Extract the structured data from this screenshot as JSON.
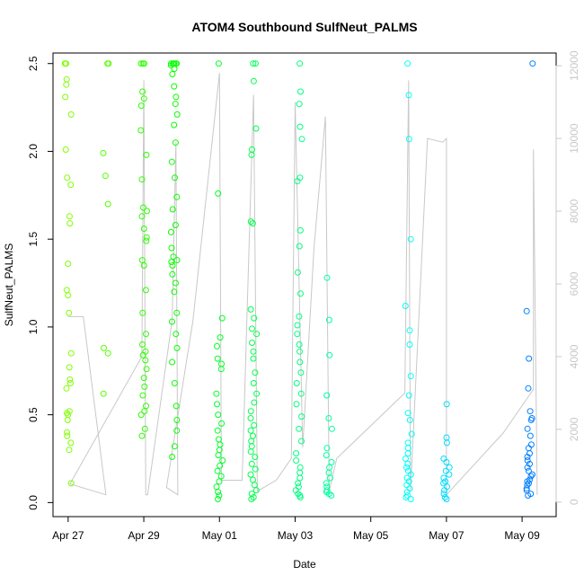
{
  "chart_data": {
    "type": "scatter",
    "title": "ATOM4 Southbound SulfNeut_PALMS",
    "xlabel": "Date",
    "ylabel": "SulfNeut_PALMS",
    "xlim": [
      26.6,
      39.9
    ],
    "ylim": [
      -0.08,
      2.56
    ],
    "y2lim": [
      -400,
      12350
    ],
    "x_ticks": [
      {
        "value": 27,
        "label": "Apr 27"
      },
      {
        "value": 29,
        "label": "Apr 29"
      },
      {
        "value": 31,
        "label": "May 01"
      },
      {
        "value": 33,
        "label": "May 03"
      },
      {
        "value": 35,
        "label": "May 05"
      },
      {
        "value": 37,
        "label": "May 07"
      },
      {
        "value": 39,
        "label": "May 09"
      }
    ],
    "y_ticks": [
      "0.0",
      "0.5",
      "1.0",
      "1.5",
      "2.0",
      "2.5"
    ],
    "y2_ticks": [
      "0",
      "2000",
      "4000",
      "6000",
      "8000",
      "10000",
      "12000"
    ],
    "grid": false,
    "series": [
      {
        "name": "SulfNeut_PALMS",
        "color_scale": [
          "#7fff00",
          "#00ff00",
          "#00ff80",
          "#00ffff",
          "#0080ff"
        ],
        "clusters": [
          {
            "x": 27.0,
            "y": [
              2.5,
              2.5,
              2.5,
              2.41,
              2.38,
              2.31,
              2.21,
              2.01,
              1.85,
              1.81,
              1.63,
              1.59,
              1.36,
              1.21,
              1.18,
              1.08,
              0.85,
              0.77,
              0.7,
              0.68,
              0.65,
              0.52,
              0.51,
              0.5,
              0.47,
              0.4,
              0.38,
              0.34,
              0.3,
              0.11
            ]
          },
          {
            "x": 28.0,
            "y": [
              2.5,
              2.5,
              1.99,
              1.86,
              1.7,
              0.88,
              0.85,
              0.62
            ]
          },
          {
            "x": 29.0,
            "y": [
              2.5,
              2.5,
              2.5,
              2.34,
              2.3,
              2.26,
              2.12,
              1.98,
              1.84,
              1.68,
              1.66,
              1.63,
              1.56,
              1.51,
              1.49,
              1.38,
              1.35,
              1.21,
              1.08,
              0.96,
              0.9,
              0.86,
              0.84,
              0.81,
              0.76,
              0.71,
              0.66,
              0.61,
              0.55,
              0.52,
              0.5,
              0.42,
              0.38
            ]
          },
          {
            "x": 29.8,
            "y": [
              2.5,
              2.5,
              2.5,
              2.5,
              2.5,
              2.5,
              2.49,
              2.47,
              2.44,
              2.37,
              2.31,
              2.27,
              2.21,
              2.15,
              2.05,
              1.94,
              1.85,
              1.74,
              1.67,
              1.58,
              1.54,
              1.45,
              1.4,
              1.38,
              1.37,
              1.35,
              1.3,
              1.25,
              1.2,
              1.08,
              1.03,
              0.96,
              0.88,
              0.8,
              0.68,
              0.55,
              0.47,
              0.41,
              0.32,
              0.26
            ]
          },
          {
            "x": 31.0,
            "y": [
              2.5,
              1.76,
              1.05,
              0.94,
              0.89,
              0.82,
              0.79,
              0.76,
              0.62,
              0.56,
              0.5,
              0.45,
              0.41,
              0.36,
              0.33,
              0.3,
              0.27,
              0.24,
              0.21,
              0.18,
              0.15,
              0.12,
              0.09,
              0.06,
              0.04,
              0.02
            ]
          },
          {
            "x": 31.9,
            "y": [
              2.5,
              2.5,
              2.4,
              2.13,
              2.01,
              1.98,
              1.6,
              1.59,
              1.1,
              1.05,
              0.99,
              0.96,
              0.91,
              0.86,
              0.82,
              0.74,
              0.68,
              0.62,
              0.57,
              0.52,
              0.48,
              0.44,
              0.41,
              0.38,
              0.35,
              0.32,
              0.29,
              0.26,
              0.22,
              0.19,
              0.16,
              0.13,
              0.1,
              0.07,
              0.05,
              0.03,
              0.02
            ]
          },
          {
            "x": 33.1,
            "y": [
              2.5,
              2.34,
              2.27,
              2.14,
              2.07,
              1.85,
              1.83,
              1.55,
              1.46,
              1.31,
              1.19,
              1.06,
              1.01,
              0.96,
              0.9,
              0.86,
              0.8,
              0.74,
              0.68,
              0.62,
              0.56,
              0.49,
              0.42,
              0.35,
              0.28,
              0.24,
              0.2,
              0.17,
              0.14,
              0.11,
              0.09,
              0.07,
              0.05,
              0.04,
              0.03
            ]
          },
          {
            "x": 33.9,
            "y": [
              1.28,
              1.04,
              0.84,
              0.61,
              0.48,
              0.42,
              0.31,
              0.27,
              0.23,
              0.2,
              0.17,
              0.14,
              0.11,
              0.09,
              0.07,
              0.06,
              0.05,
              0.04
            ]
          },
          {
            "x": 36.0,
            "y": [
              2.5,
              2.32,
              2.07,
              1.5,
              1.12,
              0.98,
              0.9,
              0.72,
              0.61,
              0.51,
              0.47,
              0.39,
              0.34,
              0.31,
              0.28,
              0.25,
              0.22,
              0.2,
              0.18,
              0.16,
              0.14,
              0.12,
              0.1,
              0.08,
              0.06,
              0.04,
              0.03,
              0.02
            ]
          },
          {
            "x": 37.0,
            "y": [
              0.56,
              0.37,
              0.34,
              0.25,
              0.23,
              0.2,
              0.18,
              0.16,
              0.14,
              0.12,
              0.11,
              0.09,
              0.07,
              0.05,
              0.03,
              0.02
            ]
          },
          {
            "x": 39.2,
            "y": [
              2.5,
              1.09,
              0.82,
              0.65,
              0.52,
              0.48,
              0.47,
              0.42,
              0.38,
              0.33,
              0.31,
              0.28,
              0.26,
              0.24,
              0.22,
              0.2,
              0.18,
              0.16,
              0.15,
              0.13,
              0.12,
              0.11,
              0.1,
              0.08,
              0.07,
              0.05,
              0.04
            ]
          }
        ]
      },
      {
        "name": "Altitude",
        "axis": "right",
        "color": "#c8c8c8",
        "path": [
          [
            27.0,
            5100
          ],
          [
            27.4,
            5100
          ],
          [
            27.4,
            5100
          ],
          [
            28.0,
            200
          ],
          [
            28.0,
            200
          ],
          [
            27.05,
            500
          ],
          [
            28.95,
            4000
          ],
          [
            29.0,
            11600
          ],
          [
            29.05,
            200
          ],
          [
            29.1,
            200
          ],
          [
            29.75,
            5000
          ],
          [
            29.85,
            9900
          ],
          [
            29.9,
            200
          ],
          [
            29.6,
            400
          ],
          [
            30.3,
            5000
          ],
          [
            31.0,
            11800
          ],
          [
            31.05,
            600
          ],
          [
            31.6,
            600
          ],
          [
            31.9,
            11200
          ],
          [
            32.0,
            300
          ],
          [
            32.5,
            600
          ],
          [
            32.9,
            1200
          ],
          [
            33.0,
            11000
          ],
          [
            33.2,
            1500
          ],
          [
            33.5,
            7000
          ],
          [
            33.8,
            10600
          ],
          [
            33.9,
            300
          ],
          [
            34.1,
            1200
          ],
          [
            35.9,
            3000
          ],
          [
            36.0,
            11600
          ],
          [
            36.05,
            300
          ],
          [
            36.5,
            10000
          ],
          [
            36.9,
            9900
          ],
          [
            37.0,
            10000
          ],
          [
            37.0,
            200
          ],
          [
            38.5,
            1900
          ],
          [
            39.3,
            3100
          ],
          [
            39.3,
            9700
          ],
          [
            39.4,
            200
          ]
        ]
      }
    ]
  }
}
